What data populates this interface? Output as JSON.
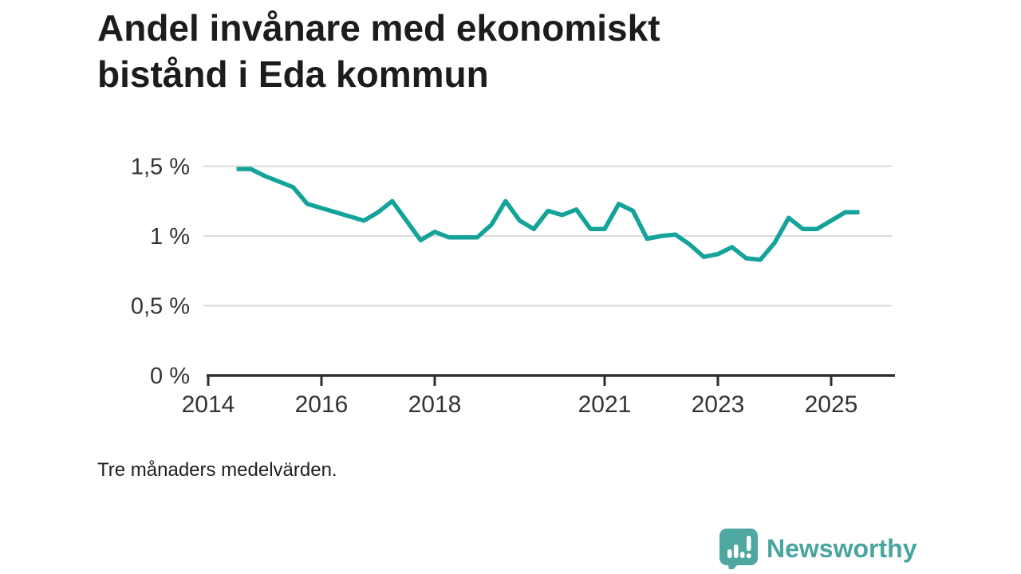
{
  "header": {
    "title_line1": "Andel invånare med ekonomiskt",
    "title_line2": "bistånd i Eda kommun"
  },
  "footnote": "Tre månaders medelvärden.",
  "branding": {
    "logo_text": "Newsworthy",
    "logo_icon": "bar-chart-speech-bubble-icon"
  },
  "colors": {
    "line": "#14a39a",
    "grid": "#dcdcdc",
    "axis": "#2d2d2d",
    "tick_text": "#333333",
    "title_text": "#1c1c1c",
    "brand": "#4fa7a1"
  },
  "chart_data": {
    "type": "line",
    "title": "Andel invånare med ekonomiskt bistånd i Eda kommun",
    "subtitle": "Tre månaders medelvärden.",
    "xlabel": "",
    "ylabel": "",
    "unit": "%",
    "grid": "horizontal",
    "legend": "none",
    "xlim": [
      2013.97,
      2026.13
    ],
    "ylim": [
      0,
      1.6
    ],
    "xticks": [
      2014,
      2016,
      2018,
      2021,
      2023,
      2025
    ],
    "yticks": [
      {
        "value": 0,
        "label": "0 %"
      },
      {
        "value": 0.5,
        "label": "0,5 %"
      },
      {
        "value": 1,
        "label": "1 %"
      },
      {
        "value": 1.5,
        "label": "1,5 %"
      }
    ],
    "x": [
      2014.5,
      2014.75,
      2015.0,
      2015.25,
      2015.5,
      2015.75,
      2016.0,
      2016.25,
      2016.5,
      2016.75,
      2017.0,
      2017.25,
      2017.5,
      2017.75,
      2018.0,
      2018.25,
      2018.5,
      2018.75,
      2019.0,
      2019.25,
      2019.5,
      2019.75,
      2020.0,
      2020.25,
      2020.5,
      2020.75,
      2021.0,
      2021.25,
      2021.5,
      2021.75,
      2022.0,
      2022.25,
      2022.5,
      2022.75,
      2023.0,
      2023.25,
      2023.5,
      2023.75,
      2024.0,
      2024.25,
      2024.5,
      2024.75,
      2025.0,
      2025.25,
      2025.5
    ],
    "values": [
      1.48,
      1.48,
      1.43,
      1.39,
      1.35,
      1.23,
      1.2,
      1.17,
      1.14,
      1.11,
      1.17,
      1.25,
      1.11,
      0.97,
      1.03,
      0.99,
      0.99,
      0.99,
      1.08,
      1.25,
      1.11,
      1.05,
      1.18,
      1.15,
      1.19,
      1.05,
      1.05,
      1.23,
      1.18,
      0.98,
      1.0,
      1.01,
      0.94,
      0.85,
      0.87,
      0.92,
      0.84,
      0.83,
      0.95,
      1.13,
      1.05,
      1.05,
      1.11,
      1.17,
      1.17
    ]
  }
}
